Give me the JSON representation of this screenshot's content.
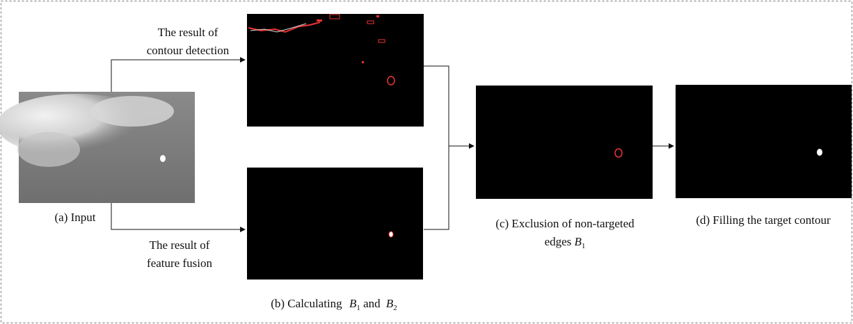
{
  "edge_labels": {
    "contour": [
      "The result of",
      "contour detection"
    ],
    "fusion": [
      "The result of",
      "feature fusion"
    ]
  },
  "captions": {
    "a": "(a) Input",
    "b": {
      "text": "(b) Calculating",
      "var1": "B",
      "sub1": "1",
      "and": "and",
      "var2": "B",
      "sub2": "2"
    },
    "c": {
      "line1": "(c) Exclusion of non-targeted",
      "line2": "edges",
      "var": "B",
      "sub": "1"
    },
    "d": "(d) Filling the target contour"
  }
}
